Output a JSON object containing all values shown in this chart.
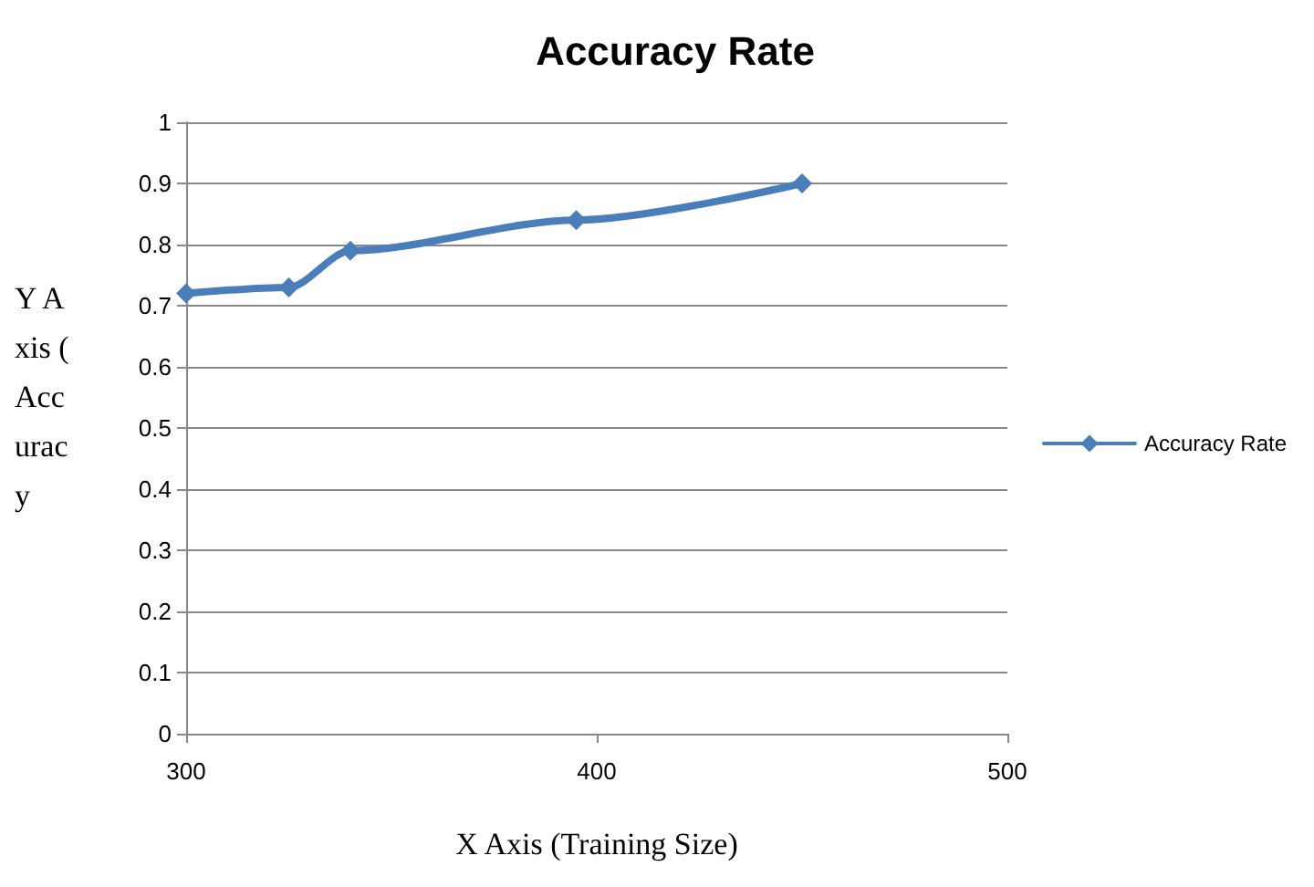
{
  "chart_data": {
    "type": "line",
    "title": "Accuracy Rate",
    "xlabel": "X Axis (Training Size)",
    "ylabel": "Y Axis (Accuracy",
    "x": [
      300,
      325,
      340,
      395,
      450
    ],
    "series": [
      {
        "name": "Accuracy Rate",
        "color": "#4a7ebb",
        "values": [
          0.72,
          0.73,
          0.79,
          0.84,
          0.9
        ]
      }
    ],
    "xlim": [
      300,
      500
    ],
    "xticks": [
      300,
      400,
      500
    ],
    "ylim": [
      0,
      1
    ],
    "yticks": [
      0,
      0.1,
      0.2,
      0.3,
      0.4,
      0.5,
      0.6,
      0.7,
      0.8,
      0.9,
      1
    ],
    "grid": "y",
    "legend": "right",
    "marker": "diamond",
    "line_style": "solid"
  }
}
